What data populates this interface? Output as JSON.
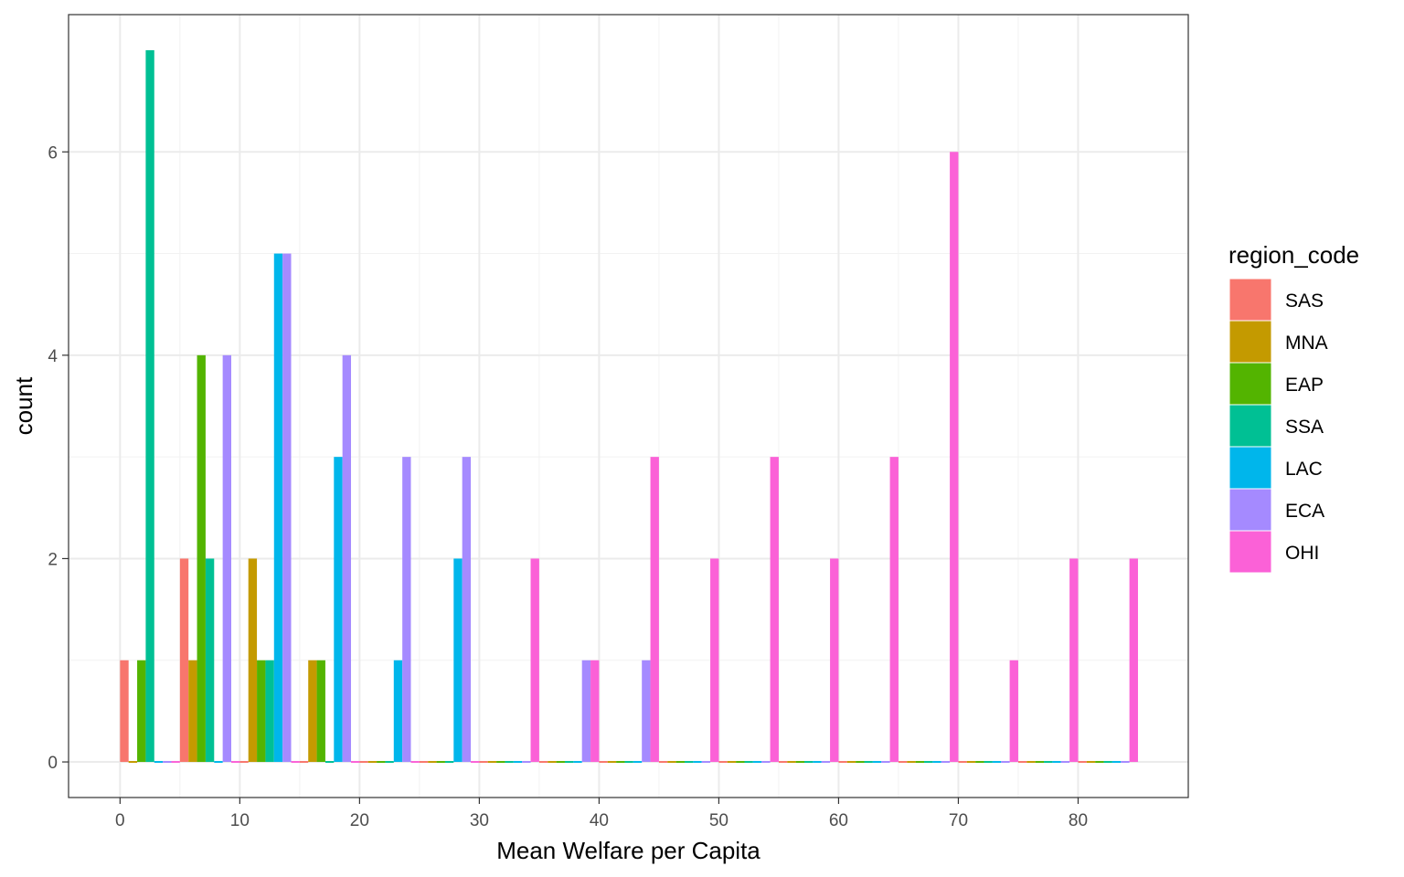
{
  "chart_data": {
    "type": "bar",
    "title": "",
    "xlabel": "Mean Welfare per Capita",
    "ylabel": "count",
    "xlim": [
      -4.3,
      89.2
    ],
    "ylim": [
      -0.35,
      7.35
    ],
    "x_ticks": [
      0,
      10,
      20,
      30,
      40,
      50,
      60,
      70,
      80
    ],
    "y_ticks": [
      0,
      2,
      4,
      6
    ],
    "bin_width": 5,
    "bin_centers": [
      2.5,
      7.5,
      12.5,
      17.5,
      22.5,
      27.5,
      32.5,
      37.5,
      42.5,
      47.5,
      52.5,
      57.5,
      62.5,
      67.5,
      72.5,
      77.5,
      82.5
    ],
    "grid": true,
    "legend_title": "region_code",
    "legend_position": "right",
    "series": [
      {
        "name": "SAS",
        "color": "#F8766D",
        "values": [
          1,
          2,
          0,
          0,
          0,
          0,
          0,
          0,
          0,
          0,
          0,
          0,
          0,
          0,
          0,
          0,
          0
        ]
      },
      {
        "name": "MNA",
        "color": "#C49A00",
        "values": [
          0,
          1,
          2,
          1,
          0,
          0,
          0,
          0,
          0,
          0,
          0,
          0,
          0,
          0,
          0,
          0,
          0
        ]
      },
      {
        "name": "EAP",
        "color": "#53B400",
        "values": [
          1,
          4,
          1,
          1,
          0,
          0,
          0,
          0,
          0,
          0,
          0,
          0,
          0,
          0,
          0,
          0,
          0
        ]
      },
      {
        "name": "SSA",
        "color": "#00C094",
        "values": [
          7,
          2,
          1,
          0,
          0,
          0,
          0,
          0,
          0,
          0,
          0,
          0,
          0,
          0,
          0,
          0,
          0
        ]
      },
      {
        "name": "LAC",
        "color": "#00B6EB",
        "values": [
          0,
          0,
          5,
          3,
          1,
          2,
          0,
          0,
          0,
          0,
          0,
          0,
          0,
          0,
          0,
          0,
          0
        ]
      },
      {
        "name": "ECA",
        "color": "#A58AFF",
        "values": [
          0,
          4,
          5,
          4,
          3,
          3,
          0,
          1,
          1,
          0,
          0,
          0,
          0,
          0,
          0,
          0,
          0
        ]
      },
      {
        "name": "OHI",
        "color": "#FB61D7",
        "values": [
          0,
          0,
          0,
          0,
          0,
          0,
          2,
          1,
          3,
          2,
          3,
          2,
          3,
          6,
          1,
          2,
          2
        ]
      }
    ]
  }
}
